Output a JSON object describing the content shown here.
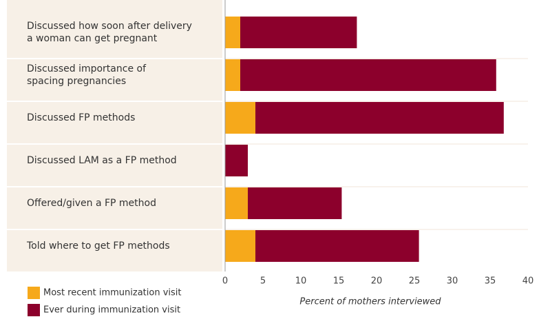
{
  "chart_data": {
    "type": "stacked_barh",
    "categories": [
      "Discussed how soon after delivery\na woman can get pregnant",
      "Discussed importance of\nspacing pregnancies",
      "Discussed FP methods",
      "Discussed LAM as a FP method",
      "Offered/given a FP method",
      "Told where to get FP methods"
    ],
    "series": [
      {
        "name": "Most recent immunization visit",
        "color": "#f6a91b",
        "values": [
          2,
          2,
          4,
          0,
          3,
          4
        ]
      },
      {
        "name": "Ever during immunization visit",
        "color": "#8c002c",
        "values": [
          15.4,
          33.8,
          32.8,
          3,
          12.4,
          21.6
        ]
      }
    ],
    "xlim": [
      0,
      40
    ],
    "xticks": [
      0,
      5,
      10,
      15,
      20,
      25,
      30,
      35,
      40
    ],
    "xlabel": "Percent of mothers interviewed"
  }
}
